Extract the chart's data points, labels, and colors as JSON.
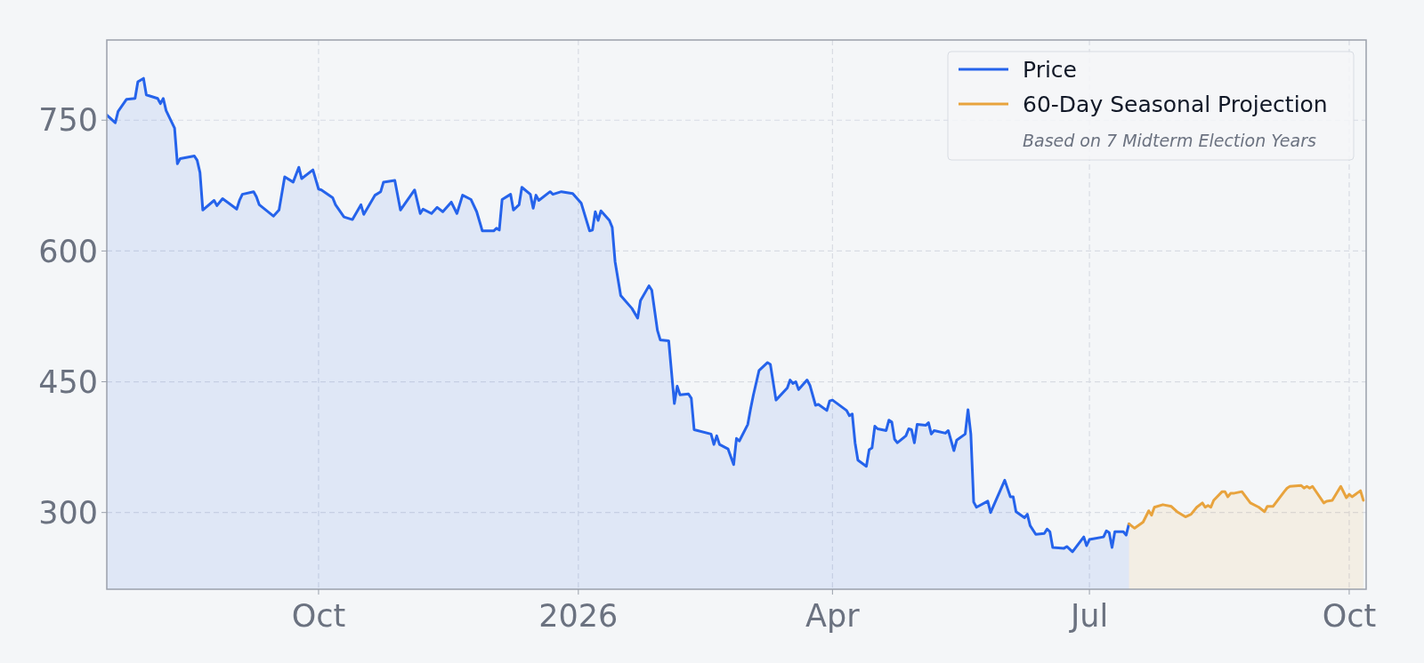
{
  "chart_data": {
    "type": "area",
    "legend": "top right",
    "grid": true,
    "annotations": [
      "Based on 7 Midterm Election Years"
    ],
    "xlim": [
      "2025-07-18",
      "2026-10-07"
    ],
    "ylim": [
      212,
      842
    ],
    "xticks": [
      {
        "value": "2025-10-01",
        "label": "Oct"
      },
      {
        "value": "2026-01-01",
        "label": "2026"
      },
      {
        "value": "2026-04-01",
        "label": "Apr"
      },
      {
        "value": "2026-07-01",
        "label": "Jul"
      },
      {
        "value": "2026-10-01",
        "label": "Oct"
      }
    ],
    "yticks": [
      300,
      450,
      600,
      750
    ],
    "series": [
      {
        "name": "Price",
        "color": "#2563eb",
        "x": [
          "2025-07-18",
          "2025-07-21",
          "2025-07-22",
          "2025-07-25",
          "2025-07-28",
          "2025-07-29",
          "2025-07-31",
          "2025-08-01",
          "2025-08-05",
          "2025-08-06",
          "2025-08-07",
          "2025-08-08",
          "2025-08-11",
          "2025-08-12",
          "2025-08-13",
          "2025-08-18",
          "2025-08-19",
          "2025-08-20",
          "2025-08-21",
          "2025-08-25",
          "2025-08-26",
          "2025-08-28",
          "2025-09-02",
          "2025-09-03",
          "2025-09-04",
          "2025-09-08",
          "2025-09-09",
          "2025-09-10",
          "2025-09-15",
          "2025-09-17",
          "2025-09-19",
          "2025-09-22",
          "2025-09-24",
          "2025-09-25",
          "2025-09-29",
          "2025-10-01",
          "2025-10-02",
          "2025-10-06",
          "2025-10-07",
          "2025-10-10",
          "2025-10-13",
          "2025-10-16",
          "2025-10-17",
          "2025-10-21",
          "2025-10-23",
          "2025-10-24",
          "2025-10-28",
          "2025-10-30",
          "2025-11-04",
          "2025-11-06",
          "2025-11-07",
          "2025-11-10",
          "2025-11-12",
          "2025-11-14",
          "2025-11-17",
          "2025-11-19",
          "2025-11-21",
          "2025-11-24",
          "2025-11-26",
          "2025-11-28",
          "2025-12-02",
          "2025-12-03",
          "2025-12-04",
          "2025-12-05",
          "2025-12-08",
          "2025-12-09",
          "2025-12-11",
          "2025-12-12",
          "2025-12-15",
          "2025-12-16",
          "2025-12-17",
          "2025-12-18",
          "2025-12-22",
          "2025-12-23",
          "2025-12-26",
          "2025-12-30",
          "2026-01-02",
          "2026-01-05",
          "2026-01-06",
          "2026-01-07",
          "2026-01-08",
          "2026-01-09",
          "2026-01-12",
          "2026-01-13",
          "2026-01-14",
          "2026-01-16",
          "2026-01-20",
          "2026-01-22",
          "2026-01-23",
          "2026-01-26",
          "2026-01-27",
          "2026-01-29",
          "2026-01-30",
          "2026-02-02",
          "2026-02-04",
          "2026-02-05",
          "2026-02-06",
          "2026-02-09",
          "2026-02-10",
          "2026-02-11",
          "2026-02-17",
          "2026-02-18",
          "2026-02-19",
          "2026-02-20",
          "2026-02-23",
          "2026-02-25",
          "2026-02-26",
          "2026-02-27",
          "2026-03-02",
          "2026-03-03",
          "2026-03-04",
          "2026-03-06",
          "2026-03-09",
          "2026-03-10",
          "2026-03-12",
          "2026-03-16",
          "2026-03-17",
          "2026-03-18",
          "2026-03-19",
          "2026-03-20",
          "2026-03-23",
          "2026-03-24",
          "2026-03-26",
          "2026-03-27",
          "2026-03-30",
          "2026-03-31",
          "2026-04-01",
          "2026-04-06",
          "2026-04-07",
          "2026-04-08",
          "2026-04-09",
          "2026-04-10",
          "2026-04-13",
          "2026-04-14",
          "2026-04-15",
          "2026-04-16",
          "2026-04-17",
          "2026-04-20",
          "2026-04-21",
          "2026-04-22",
          "2026-04-23",
          "2026-04-24",
          "2026-04-27",
          "2026-04-28",
          "2026-04-29",
          "2026-04-30",
          "2026-05-01",
          "2026-05-04",
          "2026-05-05",
          "2026-05-06",
          "2026-05-07",
          "2026-05-11",
          "2026-05-12",
          "2026-05-14",
          "2026-05-15",
          "2026-05-18",
          "2026-05-19",
          "2026-05-20",
          "2026-05-21",
          "2026-05-22",
          "2026-05-26",
          "2026-05-27",
          "2026-06-01",
          "2026-06-03",
          "2026-06-04",
          "2026-06-05",
          "2026-06-08",
          "2026-06-09",
          "2026-06-10",
          "2026-06-12",
          "2026-06-15",
          "2026-06-16",
          "2026-06-17",
          "2026-06-18",
          "2026-06-22",
          "2026-06-23",
          "2026-06-25",
          "2026-06-29",
          "2026-06-30",
          "2026-07-01",
          "2026-07-06",
          "2026-07-07",
          "2026-07-08",
          "2026-07-09",
          "2026-07-10",
          "2026-07-13",
          "2026-07-14",
          "2026-07-15"
        ],
        "values": [
          756,
          747,
          760,
          774,
          775,
          794,
          798,
          779,
          775,
          769,
          775,
          761,
          741,
          700,
          706,
          709,
          704,
          690,
          647,
          658,
          652,
          660,
          648,
          658,
          665,
          668,
          662,
          653,
          640,
          647,
          685,
          679,
          696,
          683,
          693,
          671,
          670,
          661,
          653,
          639,
          636,
          653,
          642,
          664,
          668,
          679,
          681,
          647,
          670,
          643,
          648,
          643,
          650,
          645,
          656,
          643,
          664,
          659,
          645,
          623,
          623,
          626,
          624,
          659,
          665,
          647,
          653,
          673,
          665,
          649,
          664,
          658,
          668,
          665,
          668,
          666,
          655,
          623,
          624,
          645,
          635,
          646,
          635,
          627,
          588,
          549,
          534,
          523,
          543,
          560,
          555,
          509,
          498,
          497,
          425,
          445,
          435,
          436,
          431,
          395,
          390,
          378,
          388,
          378,
          373,
          355,
          385,
          382,
          401,
          419,
          435,
          463,
          472,
          470,
          429,
          443,
          452,
          448,
          450,
          441,
          452,
          446,
          423,
          424,
          417,
          428,
          429,
          417,
          411,
          413,
          380,
          360,
          353,
          372,
          374,
          399,
          396,
          394,
          406,
          404,
          384,
          380,
          388,
          396,
          395,
          380,
          401,
          400,
          403,
          390,
          394,
          391,
          394,
          371,
          383,
          390,
          418,
          390,
          312,
          306,
          313,
          300,
          337,
          318,
          318,
          301,
          294,
          298,
          285,
          275,
          276,
          281,
          278,
          260,
          259,
          261,
          255,
          272,
          262,
          269,
          272,
          279,
          277,
          260,
          278,
          278,
          274,
          287
        ]
      },
      {
        "name": "60-Day Seasonal Projection",
        "color": "#e8a33d",
        "x": [
          "2026-07-15",
          "2026-07-17",
          "2026-07-20",
          "2026-07-22",
          "2026-07-23",
          "2026-07-24",
          "2026-07-27",
          "2026-07-30",
          "2026-08-01",
          "2026-08-04",
          "2026-08-06",
          "2026-08-08",
          "2026-08-10",
          "2026-08-11",
          "2026-08-12",
          "2026-08-13",
          "2026-08-14",
          "2026-08-17",
          "2026-08-18",
          "2026-08-19",
          "2026-08-20",
          "2026-08-21",
          "2026-08-24",
          "2026-08-27",
          "2026-08-30",
          "2026-09-01",
          "2026-09-02",
          "2026-09-04",
          "2026-09-08",
          "2026-09-09",
          "2026-09-10",
          "2026-09-14",
          "2026-09-15",
          "2026-09-16",
          "2026-09-17",
          "2026-09-18",
          "2026-09-22",
          "2026-09-23",
          "2026-09-25",
          "2026-09-28",
          "2026-09-30",
          "2026-10-01",
          "2026-10-02",
          "2026-10-05",
          "2026-10-06"
        ],
        "values": [
          287,
          282,
          289,
          302,
          297,
          306,
          309,
          307,
          301,
          295,
          298,
          306,
          311,
          306,
          308,
          306,
          314,
          324,
          324,
          318,
          322,
          322,
          324,
          311,
          306,
          301,
          307,
          307,
          324,
          328,
          330,
          331,
          328,
          330,
          328,
          330,
          311,
          313,
          314,
          330,
          317,
          321,
          318,
          325,
          314
        ]
      }
    ]
  }
}
